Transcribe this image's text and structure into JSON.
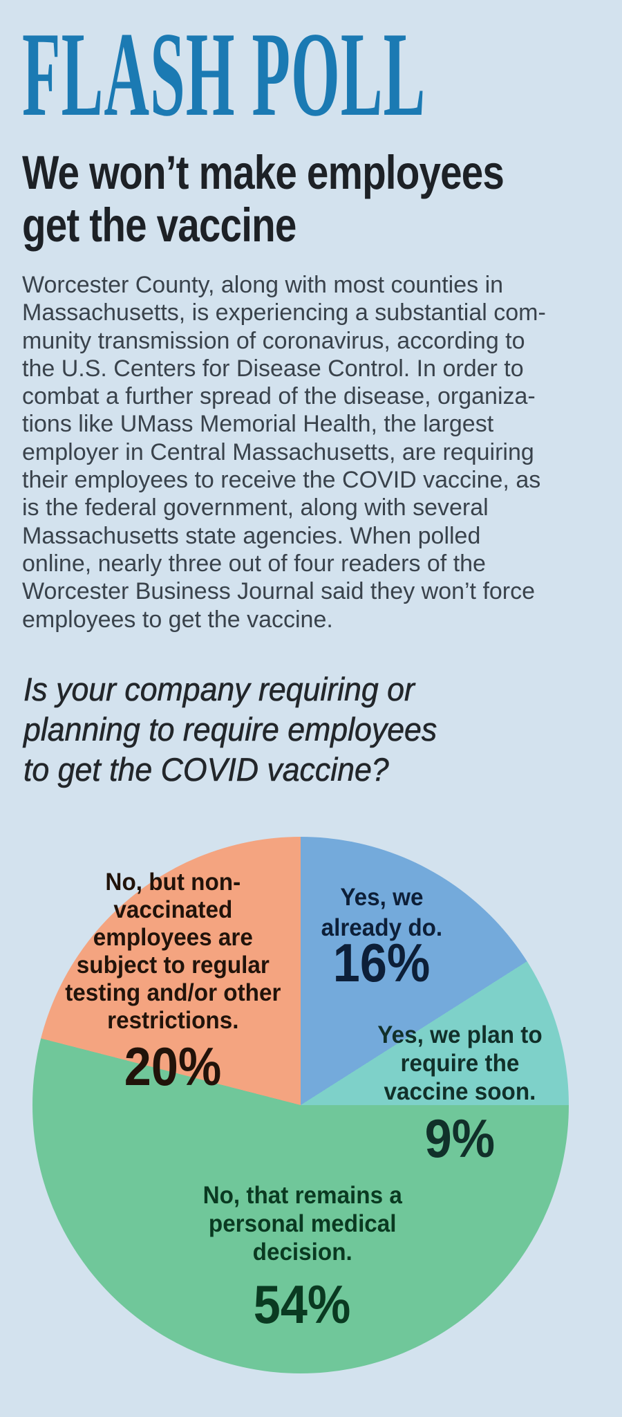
{
  "page": {
    "background": "#d3e2ee"
  },
  "masthead": {
    "title": "FLASH POLL",
    "color": "#1b7ab3"
  },
  "article": {
    "headline_lines": [
      "We won’t make employees",
      "get the vaccine"
    ],
    "body_lines": [
      "Worcester County, along with most counties in",
      "Massachusetts, is experiencing a substantial com-",
      "munity transmission of coronavirus, according to",
      "the U.S. Centers for Disease Control. In order to",
      "combat a further spread of the disease, organiza-",
      "tions like UMass Memorial Health, the largest",
      "employer in Central Massachusetts, are requiring",
      "their employees to receive the COVID vaccine, as",
      "is the federal government, along with several",
      "Massachusetts state agencies. When polled",
      "online, nearly three out of four readers of the",
      "Worcester Business Journal said they won’t force",
      "employees to get the vaccine."
    ],
    "question_lines": [
      "Is your company requiring or",
      "planning to require employees",
      "to get the COVID vaccine?"
    ]
  },
  "chart_data": {
    "type": "pie",
    "title": "Is your company requiring or planning to require employees to get the COVID vaccine?",
    "start_angle_deg_from_12_oclock": 0,
    "direction": "clockwise",
    "slices": [
      {
        "label": "Yes, we already do.",
        "label_lines": [
          "Yes, we",
          "already do."
        ],
        "value": 16,
        "pct_label": "16%",
        "color": "#74aadb",
        "text_color": "#0d1f38"
      },
      {
        "label": "Yes, we plan to require the vaccine soon.",
        "label_lines": [
          "Yes, we plan to",
          "require the",
          "vaccine soon."
        ],
        "value": 9,
        "pct_label": "9%",
        "color": "#7ed1c9",
        "text_color": "#11302a"
      },
      {
        "label": "No, that remains a personal medical decision.",
        "label_lines": [
          "No, that remains a",
          "personal medical",
          "decision."
        ],
        "value": 54,
        "pct_label": "54%",
        "color": "#70c79a",
        "text_color": "#0a3a21"
      },
      {
        "label": "No, but non-vaccinated employees are subject to regular testing and/or other restrictions.",
        "label_lines": [
          "No, but non-",
          "vaccinated",
          "employees are",
          "subject to regular",
          "testing and/or other",
          "restrictions."
        ],
        "value": 20,
        "pct_label": "20%",
        "color": "#f4a480",
        "text_color": "#21130a"
      }
    ]
  }
}
